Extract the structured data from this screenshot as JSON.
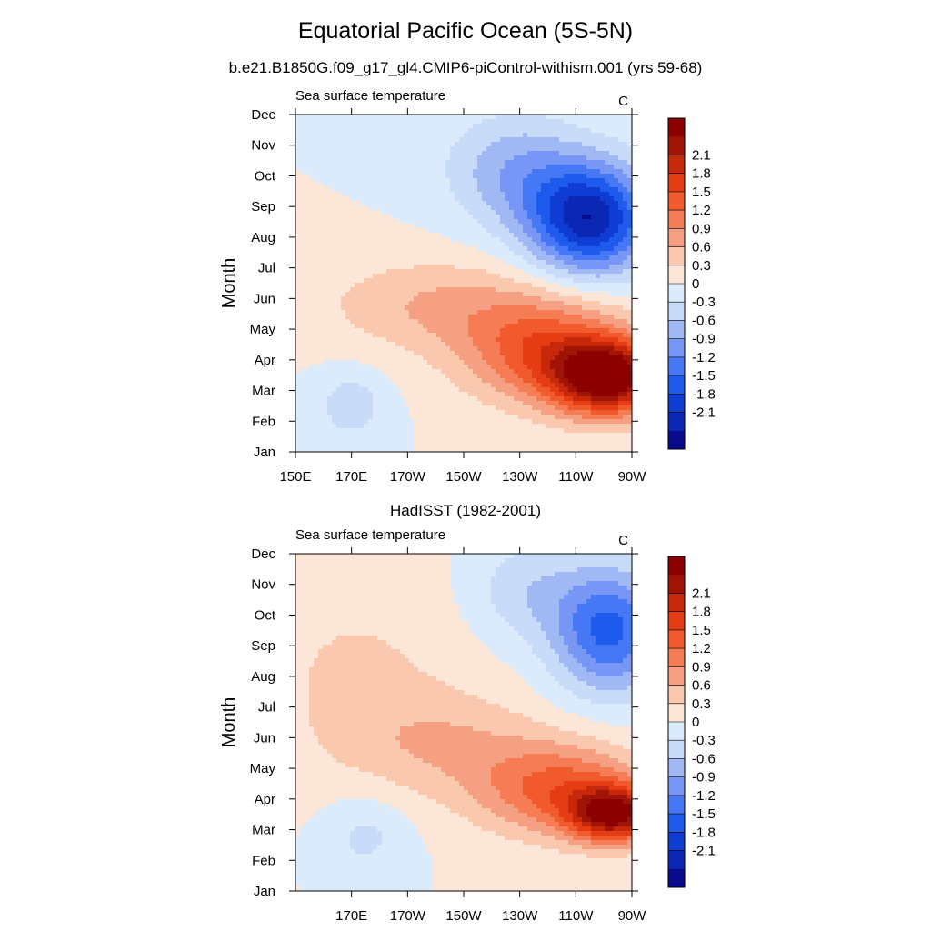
{
  "title": "Equatorial Pacific Ocean (5S-5N)",
  "subtitle": "b.e21.B1850G.f09_g17_gl4.CMIP6-piControl-withism.001 (yrs 59-68)",
  "colors": [
    "#0a0a8c",
    "#0a28b4",
    "#0f3cd2",
    "#1e5aeb",
    "#4678f5",
    "#7896f5",
    "#a0b9f5",
    "#c8dcfa",
    "#dcebfc",
    "#fce6d7",
    "#fac8af",
    "#f5a082",
    "#f57c55",
    "#f05a2d",
    "#e63c14",
    "#c8280a",
    "#a01405",
    "#8c0000"
  ],
  "chart_data": [
    {
      "type": "heatmap",
      "title": "",
      "left_label": "Sea surface temperature",
      "right_label": "C",
      "ylabel": "Month",
      "y_ticks": [
        "Jan",
        "Feb",
        "Mar",
        "Apr",
        "May",
        "Jun",
        "Jul",
        "Aug",
        "Sep",
        "Oct",
        "Nov",
        "Dec"
      ],
      "x_ticks": [
        "150E",
        "170E",
        "170W",
        "150W",
        "130W",
        "110W",
        "90W"
      ],
      "levels": [
        "2.1",
        "1.8",
        "1.5",
        "1.2",
        "0.9",
        "0.6",
        "0.3",
        "0",
        "-0.3",
        "-0.6",
        "-0.9",
        "-1.2",
        "-1.5",
        "-1.8",
        "-2.1"
      ],
      "x_range": [
        150,
        270
      ],
      "y_range": [
        1,
        12
      ],
      "grid": false,
      "anomalies": [
        {
          "x": 262,
          "y": 3.4,
          "sx": 20,
          "sy": 1.2,
          "amp": 2.5
        },
        {
          "x": 240,
          "y": 4.3,
          "sx": 30,
          "sy": 1.7,
          "amp": 1.4
        },
        {
          "x": 200,
          "y": 5.8,
          "sx": 40,
          "sy": 1.5,
          "amp": 0.6
        },
        {
          "x": 255,
          "y": 8.6,
          "sx": 22,
          "sy": 1.8,
          "amp": -2.3
        },
        {
          "x": 228,
          "y": 10.2,
          "sx": 24,
          "sy": 1.8,
          "amp": -0.8
        },
        {
          "x": 170,
          "y": 2.5,
          "sx": 12,
          "sy": 1.1,
          "amp": -0.5
        }
      ]
    },
    {
      "type": "heatmap",
      "title": "HadISST (1982-2001)",
      "left_label": "Sea surface temperature",
      "right_label": "C",
      "ylabel": "Month",
      "y_ticks": [
        "Jan",
        "Feb",
        "Mar",
        "Apr",
        "May",
        "Jun",
        "Jul",
        "Aug",
        "Sep",
        "Oct",
        "Nov",
        "Dec"
      ],
      "x_ticks": [
        "170E",
        "170W",
        "150W",
        "130W",
        "110W",
        "90W"
      ],
      "levels": [
        "2.1",
        "1.8",
        "1.5",
        "1.2",
        "0.9",
        "0.6",
        "0.3",
        "0",
        "-0.3",
        "-0.6",
        "-0.9",
        "-1.2",
        "-1.5",
        "-1.8",
        "-2.1"
      ],
      "x_range": [
        150,
        270
      ],
      "y_range": [
        1,
        12
      ],
      "grid": false,
      "anomalies": [
        {
          "x": 264,
          "y": 3.5,
          "sx": 16,
          "sy": 0.9,
          "amp": 2.2
        },
        {
          "x": 245,
          "y": 4.3,
          "sx": 30,
          "sy": 1.5,
          "amp": 1.3
        },
        {
          "x": 205,
          "y": 5.8,
          "sx": 35,
          "sy": 1.6,
          "amp": 0.5
        },
        {
          "x": 262,
          "y": 9.5,
          "sx": 20,
          "sy": 2.0,
          "amp": -1.6
        },
        {
          "x": 232,
          "y": 10.8,
          "sx": 20,
          "sy": 1.6,
          "amp": -0.5
        },
        {
          "x": 175,
          "y": 2.8,
          "sx": 15,
          "sy": 1.3,
          "amp": -0.4
        },
        {
          "x": 172,
          "y": 8.0,
          "sx": 40,
          "sy": 3.5,
          "amp": 0.35
        }
      ]
    }
  ]
}
